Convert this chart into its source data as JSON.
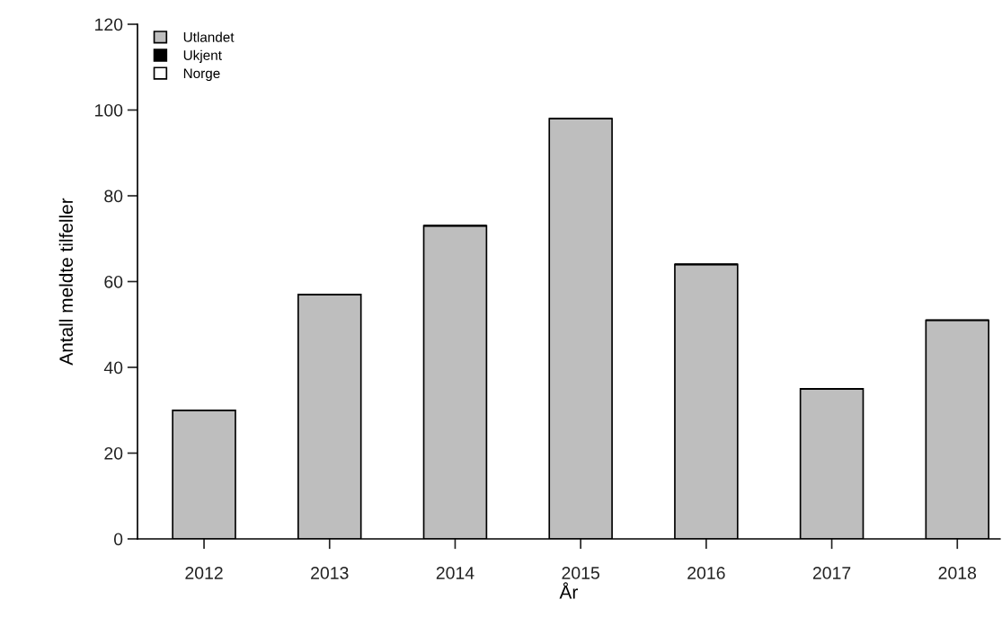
{
  "chart_data": {
    "type": "bar",
    "stacked": true,
    "xlabel": "År",
    "ylabel": "Antall meldte tilfeller",
    "categories": [
      "2012",
      "2013",
      "2014",
      "2015",
      "2016",
      "2017",
      "2018"
    ],
    "series": [
      {
        "name": "Utlandet",
        "color": "#bebebe",
        "values": [
          30,
          57,
          73,
          98,
          64,
          35,
          51
        ]
      },
      {
        "name": "Ukjent",
        "color": "#000000",
        "values": [
          0,
          0,
          0,
          0,
          0,
          0,
          0
        ]
      },
      {
        "name": "Norge",
        "color": "#ffffff",
        "values": [
          0,
          0,
          0,
          0,
          0,
          0,
          0
        ]
      }
    ],
    "ylim": [
      0,
      120
    ],
    "yticks": [
      0,
      20,
      40,
      60,
      80,
      100,
      120
    ],
    "legend": "top left",
    "grid": false
  }
}
